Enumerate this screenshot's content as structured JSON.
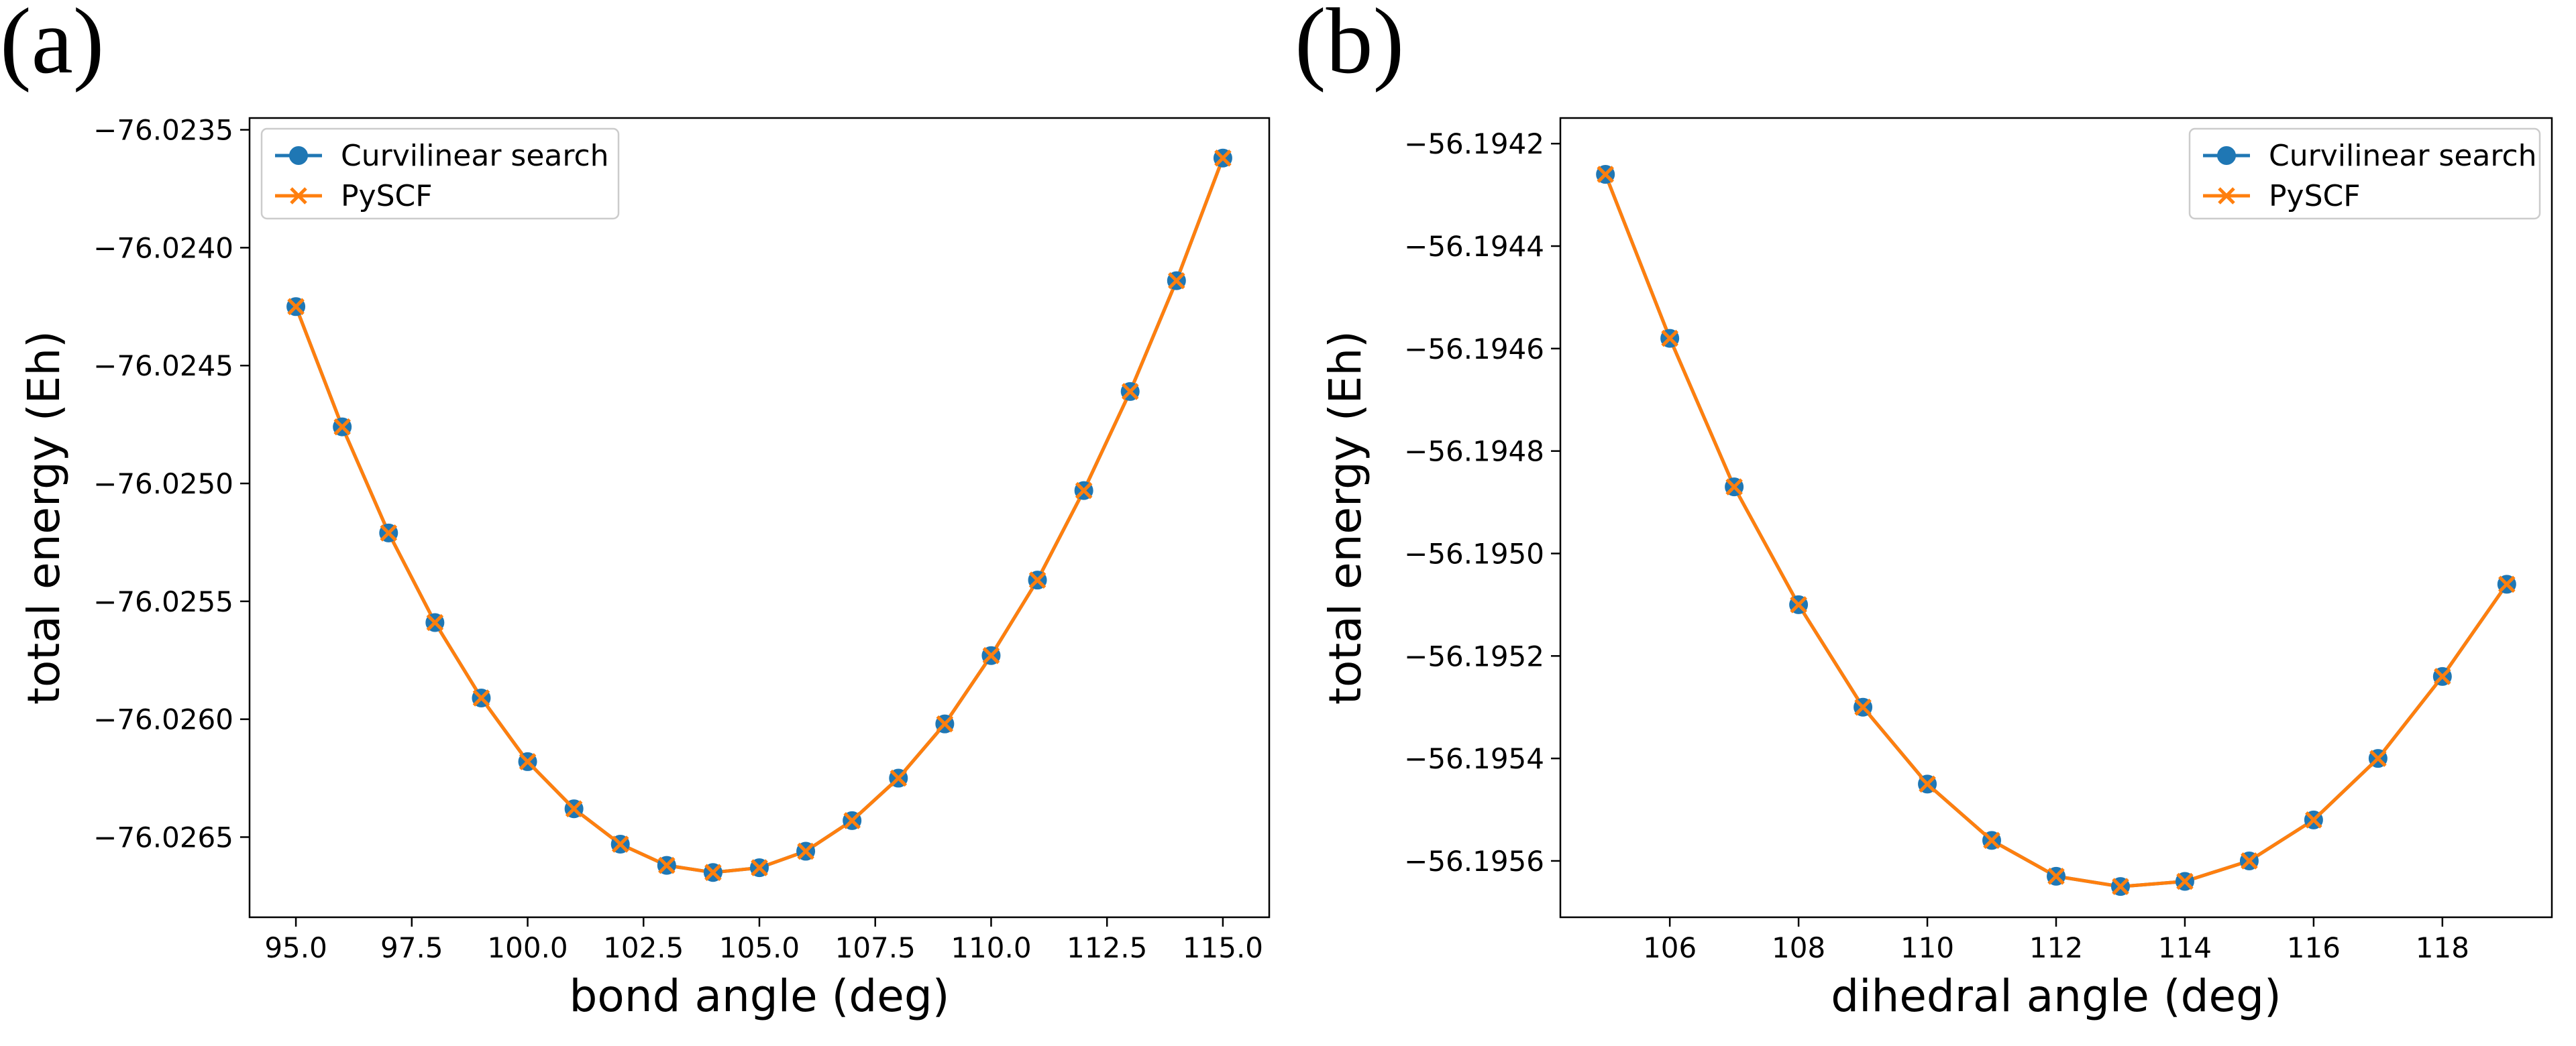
{
  "colors": {
    "series1": "#1f77b4",
    "series2": "#ff7f0e"
  },
  "chart_data": [
    {
      "type": "line",
      "panel_label": "(a)",
      "xlabel": "bond angle (deg)",
      "ylabel": "total energy (Eh)",
      "xlim": [
        94,
        116
      ],
      "ylim": [
        -76.02684,
        -76.02345
      ],
      "xticks": [
        95.0,
        97.5,
        100.0,
        102.5,
        105.0,
        107.5,
        110.0,
        112.5,
        115.0
      ],
      "xtick_labels": [
        "95.0",
        "97.5",
        "100.0",
        "102.5",
        "105.0",
        "107.5",
        "110.0",
        "112.5",
        "115.0"
      ],
      "yticks": [
        -76.0265,
        -76.026,
        -76.0255,
        -76.025,
        -76.0245,
        -76.024,
        -76.0235
      ],
      "ytick_labels": [
        "−76.0265",
        "−76.0260",
        "−76.0255",
        "−76.0250",
        "−76.0245",
        "−76.0240",
        "−76.0235"
      ],
      "legend_position": "top-left",
      "x": [
        95,
        96,
        97,
        98,
        99,
        100,
        101,
        102,
        103,
        104,
        105,
        106,
        107,
        108,
        109,
        110,
        111,
        112,
        113,
        114,
        115
      ],
      "series": [
        {
          "name": "Curvilinear search",
          "marker": "circle",
          "values": [
            -76.02425,
            -76.02476,
            -76.02521,
            -76.02559,
            -76.02591,
            -76.02618,
            -76.02638,
            -76.02653,
            -76.02662,
            -76.02665,
            -76.02663,
            -76.02656,
            -76.02643,
            -76.02625,
            -76.02602,
            -76.02573,
            -76.02541,
            -76.02503,
            -76.02461,
            -76.02414,
            -76.02362
          ]
        },
        {
          "name": "PySCF",
          "marker": "x",
          "values": [
            -76.02425,
            -76.02476,
            -76.02521,
            -76.02559,
            -76.02591,
            -76.02618,
            -76.02638,
            -76.02653,
            -76.02662,
            -76.02665,
            -76.02663,
            -76.02656,
            -76.02643,
            -76.02625,
            -76.02602,
            -76.02573,
            -76.02541,
            -76.02503,
            -76.02461,
            -76.02414,
            -76.02362
          ]
        }
      ]
    },
    {
      "type": "line",
      "panel_label": "(b)",
      "xlabel": "dihedral angle (deg)",
      "ylabel": "total energy (Eh)",
      "xlim": [
        104.3,
        119.7
      ],
      "ylim": [
        -56.19571,
        -56.19415
      ],
      "xticks": [
        106,
        108,
        110,
        112,
        114,
        116,
        118
      ],
      "xtick_labels": [
        "106",
        "108",
        "110",
        "112",
        "114",
        "116",
        "118"
      ],
      "yticks": [
        -56.1956,
        -56.1954,
        -56.1952,
        -56.195,
        -56.1948,
        -56.1946,
        -56.1944,
        -56.1942
      ],
      "ytick_labels": [
        "−56.1956",
        "−56.1954",
        "−56.1952",
        "−56.1950",
        "−56.1948",
        "−56.1946",
        "−56.1944",
        "−56.1942"
      ],
      "legend_position": "top-right",
      "x": [
        105,
        106,
        107,
        108,
        109,
        110,
        111,
        112,
        113,
        114,
        115,
        116,
        117,
        118,
        119
      ],
      "series": [
        {
          "name": "Curvilinear search",
          "marker": "circle",
          "values": [
            -56.19426,
            -56.19458,
            -56.19487,
            -56.1951,
            -56.1953,
            -56.19545,
            -56.19556,
            -56.19563,
            -56.19565,
            -56.19564,
            -56.1956,
            -56.19552,
            -56.1954,
            -56.19524,
            -56.19506
          ]
        },
        {
          "name": "PySCF",
          "marker": "x",
          "values": [
            -56.19426,
            -56.19458,
            -56.19487,
            -56.1951,
            -56.1953,
            -56.19545,
            -56.19556,
            -56.19563,
            -56.19565,
            -56.19564,
            -56.1956,
            -56.19552,
            -56.1954,
            -56.19524,
            -56.19506
          ]
        }
      ]
    }
  ]
}
